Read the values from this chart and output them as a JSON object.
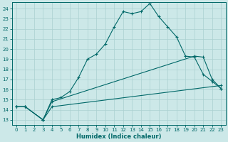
{
  "xlabel": "Humidex (Indice chaleur)",
  "bg_color": "#cce8e8",
  "line_color": "#006868",
  "grid_color": "#aad0d0",
  "xlim": [
    -0.5,
    23.5
  ],
  "ylim": [
    12.5,
    24.6
  ],
  "xticks": [
    0,
    1,
    2,
    3,
    4,
    5,
    6,
    7,
    8,
    9,
    10,
    11,
    12,
    13,
    14,
    15,
    16,
    17,
    18,
    19,
    20,
    21,
    22,
    23
  ],
  "yticks": [
    13,
    14,
    15,
    16,
    17,
    18,
    19,
    20,
    21,
    22,
    23,
    24
  ],
  "line1_x": [
    0,
    1,
    3,
    4,
    5,
    6,
    7,
    8,
    9,
    10,
    11,
    12,
    13,
    14,
    15,
    16,
    17,
    18,
    19,
    20,
    21,
    22,
    23
  ],
  "line1_y": [
    14.3,
    14.3,
    13.0,
    15.0,
    15.2,
    15.8,
    17.2,
    19.0,
    19.5,
    20.5,
    22.2,
    23.7,
    23.5,
    23.7,
    24.5,
    23.2,
    22.2,
    21.2,
    19.3,
    19.2,
    17.5,
    16.8,
    16.1
  ],
  "line2_x": [
    0,
    1,
    3,
    4,
    20,
    21,
    22,
    23
  ],
  "line2_y": [
    14.3,
    14.3,
    13.0,
    14.8,
    19.3,
    19.2,
    17.0,
    16.1
  ],
  "line3_x": [
    0,
    1,
    3,
    4,
    23
  ],
  "line3_y": [
    14.3,
    14.3,
    13.0,
    14.3,
    16.4
  ]
}
